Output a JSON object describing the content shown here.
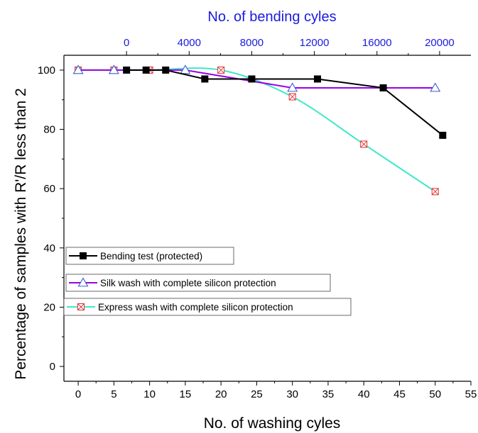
{
  "chart_data": {
    "type": "line",
    "title": "",
    "xlabel": "No. of washing cyles",
    "ylabel": "Percentage of samples with R'/R less than 2",
    "x2label": "No. of bending cyles",
    "xlim": [
      -2,
      55
    ],
    "ylim": [
      -5,
      105
    ],
    "x2lim": [
      -4000,
      22000
    ],
    "xticks": [
      0,
      5,
      10,
      15,
      20,
      25,
      30,
      35,
      40,
      45,
      50,
      55
    ],
    "yticks": [
      0,
      20,
      40,
      60,
      80,
      100
    ],
    "x2ticks": [
      0,
      4000,
      8000,
      12000,
      16000,
      20000
    ],
    "legend_position": "left-center",
    "series": [
      {
        "name": "Bending test (protected)",
        "axis": "top",
        "color": "#000000",
        "marker": "filled-square",
        "x": [
          0,
          1250,
          2500,
          5000,
          8000,
          12200,
          16400,
          20200
        ],
        "y": [
          100,
          100,
          100,
          97,
          97,
          97,
          94,
          78
        ]
      },
      {
        "name": "Silk wash with complete silicon protection",
        "axis": "bottom",
        "color": "#9b00e6",
        "marker": "open-triangle",
        "marker_color": "#3a5bd6",
        "x": [
          0,
          5,
          15,
          30,
          50
        ],
        "y": [
          100,
          100,
          100,
          94,
          94
        ]
      },
      {
        "name": "Express wash with complete silicon protection",
        "axis": "bottom",
        "color": "#3ee8c8",
        "marker": "crossed-square",
        "marker_color": "#e03030",
        "x": [
          0,
          5,
          10,
          20,
          30,
          40,
          50
        ],
        "y": [
          100,
          100,
          100,
          100,
          91,
          75,
          59
        ]
      }
    ]
  }
}
